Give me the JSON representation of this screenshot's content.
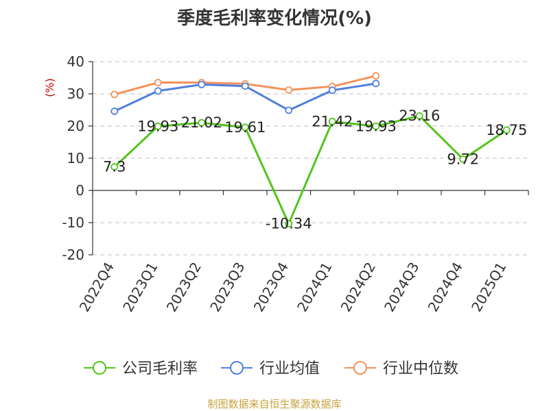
{
  "chart_data": {
    "type": "line",
    "title": "季度毛利率变化情况(%)",
    "ylabel": "(%)",
    "categories": [
      "2022Q4",
      "2023Q1",
      "2023Q2",
      "2023Q3",
      "2023Q4",
      "2024Q1",
      "2024Q2",
      "2024Q3",
      "2024Q4",
      "2025Q1"
    ],
    "ylim": [
      -20,
      40
    ],
    "yticks": [
      40,
      30,
      20,
      10,
      0,
      -10,
      -20
    ],
    "grid": true,
    "legend_position": "bottom",
    "series": [
      {
        "name": "公司毛利率",
        "color": "#52c41a",
        "values": [
          7.3,
          19.93,
          21.02,
          19.61,
          -10.34,
          21.42,
          19.93,
          23.16,
          9.72,
          18.75
        ],
        "labels": [
          "7.3",
          "19.93",
          "21.02",
          "19.61",
          "-10.34",
          "21.42",
          "19.93",
          "23.16",
          "9.72",
          "18.75"
        ]
      },
      {
        "name": "行业均值",
        "color": "#4e7fde",
        "values": [
          24.6,
          30.9,
          32.9,
          32.4,
          24.9,
          31.1,
          33.2,
          null,
          null,
          null
        ]
      },
      {
        "name": "行业中位数",
        "color": "#f5915a",
        "values": [
          29.8,
          33.5,
          33.5,
          33.1,
          31.2,
          32.3,
          35.6,
          null,
          null,
          null
        ]
      }
    ]
  },
  "source": {
    "text": "制图数据来自恒生聚源数据库",
    "color": "#c9a23f"
  },
  "ylabel_color": "#cc0000"
}
